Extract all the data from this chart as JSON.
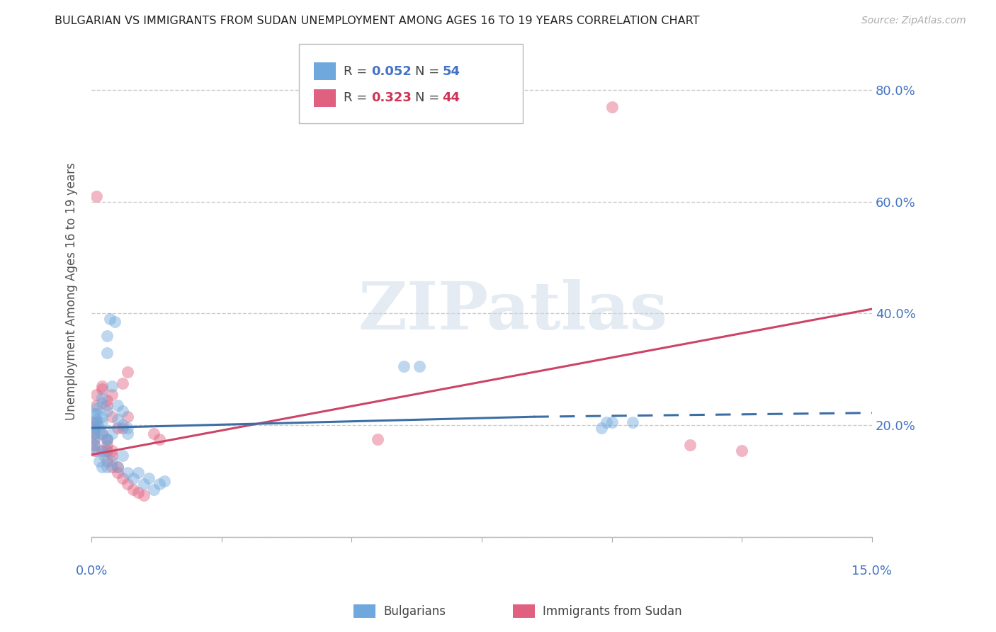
{
  "title": "BULGARIAN VS IMMIGRANTS FROM SUDAN UNEMPLOYMENT AMONG AGES 16 TO 19 YEARS CORRELATION CHART",
  "source": "Source: ZipAtlas.com",
  "ylabel": "Unemployment Among Ages 16 to 19 years",
  "xlim": [
    0.0,
    0.15
  ],
  "ylim": [
    0.0,
    0.88
  ],
  "yticks": [
    0.0,
    0.2,
    0.4,
    0.6,
    0.8
  ],
  "ytick_labels": [
    "",
    "20.0%",
    "40.0%",
    "60.0%",
    "80.0%"
  ],
  "bg_color": "#ffffff",
  "grid_color": "#cccccc",
  "watermark_text": "ZIPatlas",
  "blue_color": "#6fa8dc",
  "pink_color": "#e06080",
  "blue_line_color": "#3c6ea5",
  "pink_line_color": "#cc4466",
  "blue_scatter": [
    [
      0.001,
      0.22
    ],
    [
      0.001,
      0.21
    ],
    [
      0.002,
      0.205
    ],
    [
      0.001,
      0.23
    ],
    [
      0.002,
      0.24
    ],
    [
      0.0015,
      0.19
    ],
    [
      0.003,
      0.175
    ],
    [
      0.002,
      0.185
    ],
    [
      0.004,
      0.27
    ],
    [
      0.003,
      0.225
    ],
    [
      0.005,
      0.21
    ],
    [
      0.002,
      0.25
    ],
    [
      0.001,
      0.155
    ],
    [
      0.0012,
      0.2
    ],
    [
      0.002,
      0.215
    ],
    [
      0.003,
      0.175
    ],
    [
      0.004,
      0.185
    ],
    [
      0.005,
      0.235
    ],
    [
      0.006,
      0.225
    ],
    [
      0.007,
      0.195
    ],
    [
      0.0035,
      0.39
    ],
    [
      0.0045,
      0.385
    ],
    [
      0.003,
      0.36
    ],
    [
      0.003,
      0.33
    ],
    [
      0.0025,
      0.155
    ],
    [
      0.0025,
      0.145
    ],
    [
      0.003,
      0.125
    ],
    [
      0.004,
      0.135
    ],
    [
      0.005,
      0.125
    ],
    [
      0.006,
      0.145
    ],
    [
      0.007,
      0.115
    ],
    [
      0.008,
      0.105
    ],
    [
      0.009,
      0.115
    ],
    [
      0.01,
      0.095
    ],
    [
      0.011,
      0.105
    ],
    [
      0.012,
      0.085
    ],
    [
      0.013,
      0.095
    ],
    [
      0.014,
      0.1
    ],
    [
      0.006,
      0.2
    ],
    [
      0.007,
      0.185
    ],
    [
      0.0005,
      0.2
    ],
    [
      0.0005,
      0.195
    ],
    [
      0.0005,
      0.185
    ],
    [
      0.0005,
      0.175
    ],
    [
      0.0005,
      0.165
    ],
    [
      0.0005,
      0.22
    ],
    [
      0.06,
      0.305
    ],
    [
      0.063,
      0.305
    ],
    [
      0.099,
      0.205
    ],
    [
      0.104,
      0.205
    ],
    [
      0.098,
      0.195
    ],
    [
      0.1,
      0.205
    ],
    [
      0.0015,
      0.135
    ],
    [
      0.002,
      0.125
    ]
  ],
  "pink_scatter": [
    [
      0.001,
      0.61
    ],
    [
      0.001,
      0.235
    ],
    [
      0.002,
      0.27
    ],
    [
      0.001,
      0.255
    ],
    [
      0.002,
      0.265
    ],
    [
      0.003,
      0.245
    ],
    [
      0.004,
      0.255
    ],
    [
      0.003,
      0.235
    ],
    [
      0.004,
      0.215
    ],
    [
      0.005,
      0.195
    ],
    [
      0.006,
      0.275
    ],
    [
      0.007,
      0.295
    ],
    [
      0.003,
      0.155
    ],
    [
      0.004,
      0.155
    ],
    [
      0.003,
      0.135
    ],
    [
      0.004,
      0.125
    ],
    [
      0.005,
      0.115
    ],
    [
      0.006,
      0.105
    ],
    [
      0.007,
      0.095
    ],
    [
      0.008,
      0.085
    ],
    [
      0.009,
      0.08
    ],
    [
      0.01,
      0.075
    ],
    [
      0.002,
      0.155
    ],
    [
      0.003,
      0.165
    ],
    [
      0.004,
      0.145
    ],
    [
      0.005,
      0.125
    ],
    [
      0.006,
      0.195
    ],
    [
      0.007,
      0.215
    ],
    [
      0.012,
      0.185
    ],
    [
      0.013,
      0.175
    ],
    [
      0.001,
      0.205
    ],
    [
      0.002,
      0.185
    ],
    [
      0.003,
      0.175
    ],
    [
      0.0005,
      0.205
    ],
    [
      0.0005,
      0.195
    ],
    [
      0.0005,
      0.185
    ],
    [
      0.0005,
      0.175
    ],
    [
      0.0005,
      0.165
    ],
    [
      0.0005,
      0.155
    ],
    [
      0.055,
      0.175
    ],
    [
      0.1,
      0.77
    ],
    [
      0.115,
      0.165
    ],
    [
      0.125,
      0.155
    ]
  ],
  "blue_line_solid": [
    [
      0.0,
      0.195
    ],
    [
      0.085,
      0.215
    ]
  ],
  "blue_line_dashed": [
    [
      0.085,
      0.215
    ],
    [
      0.15,
      0.222
    ]
  ],
  "pink_line": [
    [
      0.0,
      0.147
    ],
    [
      0.15,
      0.408
    ]
  ]
}
